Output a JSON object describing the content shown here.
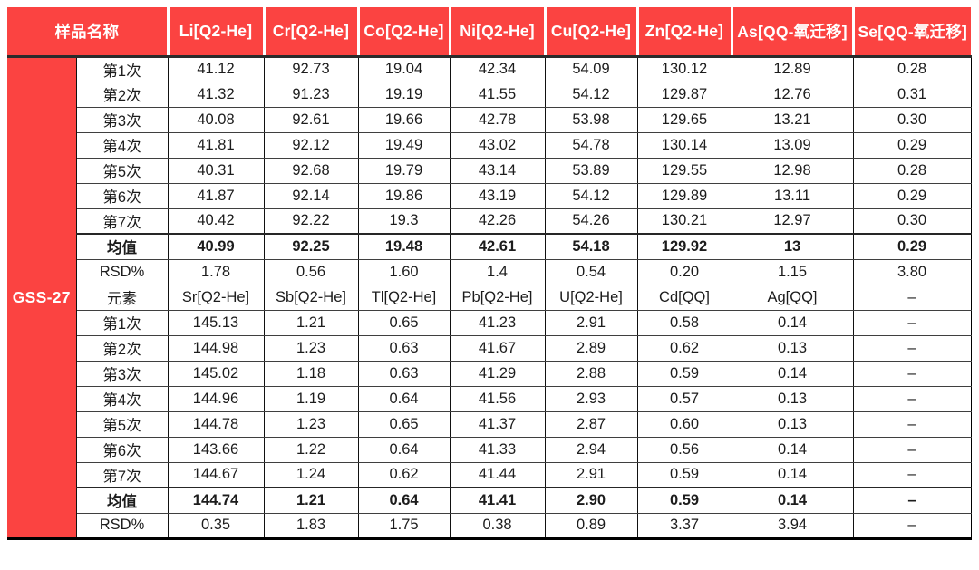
{
  "table": {
    "corner_label": "样品名称",
    "sample_label": "GSS-27",
    "header_columns": [
      "Li[Q2-He]",
      "Cr[Q2-He]",
      "Co[Q2-He]",
      "Ni[Q2-He]",
      "Cu[Q2-He]",
      "Zn[Q2-He]",
      "As[QQ-氧迁移]",
      "Se[QQ-氧迁移]"
    ],
    "colors": {
      "header_red": "#FB4341",
      "header_text": "#FFFFFF",
      "grid_dark": "#111111",
      "row_line": "#3F3F3F"
    },
    "rows": [
      {
        "label": "第1次",
        "bold": false,
        "values": [
          "41.12",
          "92.73",
          "19.04",
          "42.34",
          "54.09",
          "130.12",
          "12.89",
          "0.28"
        ]
      },
      {
        "label": "第2次",
        "bold": false,
        "values": [
          "41.32",
          "91.23",
          "19.19",
          "41.55",
          "54.12",
          "129.87",
          "12.76",
          "0.31"
        ]
      },
      {
        "label": "第3次",
        "bold": false,
        "values": [
          "40.08",
          "92.61",
          "19.66",
          "42.78",
          "53.98",
          "129.65",
          "13.21",
          "0.30"
        ]
      },
      {
        "label": "第4次",
        "bold": false,
        "values": [
          "41.81",
          "92.12",
          "19.49",
          "43.02",
          "54.78",
          "130.14",
          "13.09",
          "0.29"
        ]
      },
      {
        "label": "第5次",
        "bold": false,
        "values": [
          "40.31",
          "92.68",
          "19.79",
          "43.14",
          "53.89",
          "129.55",
          "12.98",
          "0.28"
        ]
      },
      {
        "label": "第6次",
        "bold": false,
        "values": [
          "41.87",
          "92.14",
          "19.86",
          "43.19",
          "54.12",
          "129.89",
          "13.11",
          "0.29"
        ]
      },
      {
        "label": "第7次",
        "bold": false,
        "values": [
          "40.42",
          "92.22",
          "19.3",
          "42.26",
          "54.26",
          "130.21",
          "12.97",
          "0.30"
        ]
      },
      {
        "label": "均值",
        "bold": true,
        "values": [
          "40.99",
          "92.25",
          "19.48",
          "42.61",
          "54.18",
          "129.92",
          "13",
          "0.29"
        ]
      },
      {
        "label": "RSD%",
        "bold": false,
        "values": [
          "1.78",
          "0.56",
          "1.60",
          "1.4",
          "0.54",
          "0.20",
          "1.15",
          "3.80"
        ]
      },
      {
        "label": "元素",
        "bold": false,
        "values": [
          "Sr[Q2-He]",
          "Sb[Q2-He]",
          "Tl[Q2-He]",
          "Pb[Q2-He]",
          "U[Q2-He]",
          "Cd[QQ]",
          "Ag[QQ]",
          "–"
        ]
      },
      {
        "label": "第1次",
        "bold": false,
        "values": [
          "145.13",
          "1.21",
          "0.65",
          "41.23",
          "2.91",
          "0.58",
          "0.14",
          "–"
        ]
      },
      {
        "label": "第2次",
        "bold": false,
        "values": [
          "144.98",
          "1.23",
          "0.63",
          "41.67",
          "2.89",
          "0.62",
          "0.13",
          "–"
        ]
      },
      {
        "label": "第3次",
        "bold": false,
        "values": [
          "145.02",
          "1.18",
          "0.63",
          "41.29",
          "2.88",
          "0.59",
          "0.14",
          "–"
        ]
      },
      {
        "label": "第4次",
        "bold": false,
        "values": [
          "144.96",
          "1.19",
          "0.64",
          "41.56",
          "2.93",
          "0.57",
          "0.13",
          "–"
        ]
      },
      {
        "label": "第5次",
        "bold": false,
        "values": [
          "144.78",
          "1.23",
          "0.65",
          "41.37",
          "2.87",
          "0.60",
          "0.13",
          "–"
        ]
      },
      {
        "label": "第6次",
        "bold": false,
        "values": [
          "143.66",
          "1.22",
          "0.64",
          "41.33",
          "2.94",
          "0.56",
          "0.14",
          "–"
        ]
      },
      {
        "label": "第7次",
        "bold": false,
        "values": [
          "144.67",
          "1.24",
          "0.62",
          "41.44",
          "2.91",
          "0.59",
          "0.14",
          "–"
        ]
      },
      {
        "label": "均值",
        "bold": true,
        "values": [
          "144.74",
          "1.21",
          "0.64",
          "41.41",
          "2.90",
          "0.59",
          "0.14",
          "–"
        ]
      },
      {
        "label": "RSD%",
        "bold": false,
        "values": [
          "0.35",
          "1.83",
          "1.75",
          "0.38",
          "0.89",
          "3.37",
          "3.94",
          "–"
        ]
      }
    ]
  }
}
